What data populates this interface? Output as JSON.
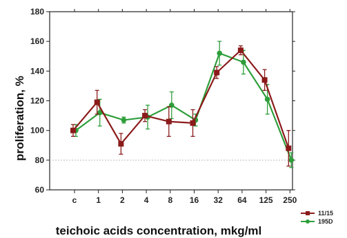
{
  "chart_data": {
    "type": "line",
    "ylabel": "proliferation, %",
    "xlabel": "teichoic acids concentration, mkg/ml",
    "categories": [
      "c",
      "1",
      "2",
      "4",
      "8",
      "16",
      "32",
      "64",
      "125",
      "250"
    ],
    "ylim": [
      60,
      180
    ],
    "yticks": [
      60,
      80,
      100,
      120,
      140,
      160,
      180
    ],
    "reference_line": 80,
    "grid": false,
    "legend_position": "bottom-right",
    "series": [
      {
        "name": "11/15",
        "color": "#8b1a1a",
        "marker": "square",
        "values": [
          100,
          119,
          91,
          110,
          106,
          105,
          139,
          154,
          134,
          88
        ],
        "errors": [
          4,
          8,
          7,
          4,
          10,
          9,
          4,
          3,
          7,
          12
        ]
      },
      {
        "name": "195D",
        "color": "#2e9e3a",
        "marker": "circle",
        "values": [
          100,
          112,
          107,
          109,
          117,
          107,
          152,
          146,
          121,
          80
        ],
        "errors": [
          4,
          9,
          2,
          8,
          9,
          4,
          8,
          8,
          10,
          5
        ]
      }
    ]
  }
}
